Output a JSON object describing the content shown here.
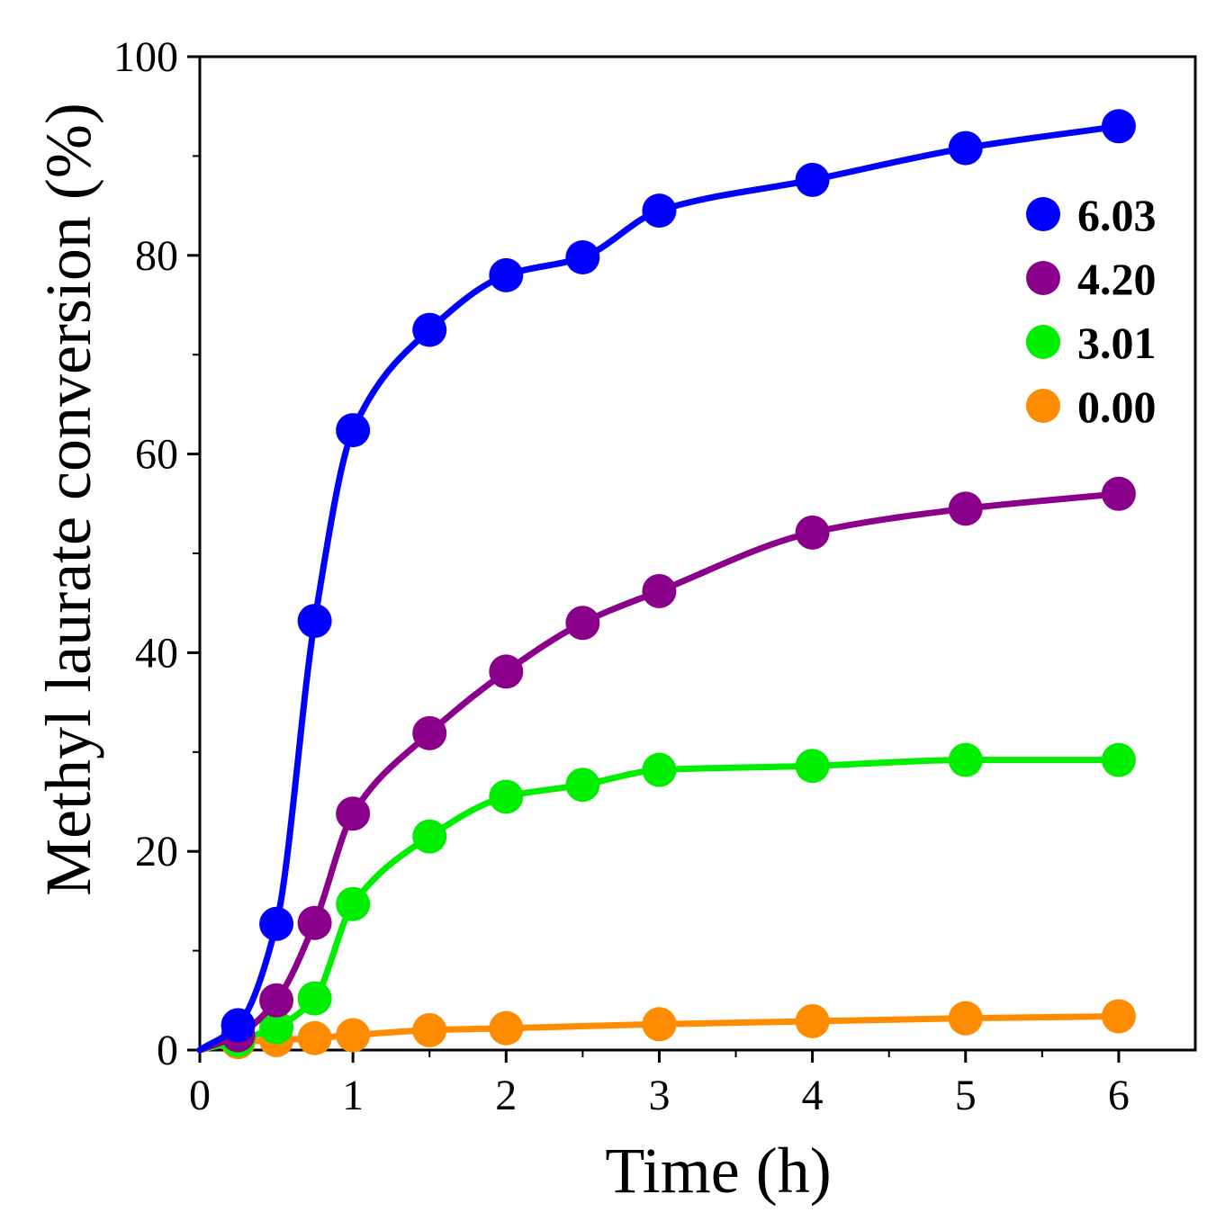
{
  "chart_data": {
    "type": "line",
    "title": "",
    "xlabel": "Time (h)",
    "ylabel": "Methyl laurate conversion (%)",
    "xlim": [
      0,
      6.5
    ],
    "ylim": [
      0,
      100
    ],
    "xticks": [
      0,
      1,
      2,
      3,
      4,
      5,
      6
    ],
    "xtick_labels": [
      "0",
      "1",
      "2",
      "3",
      "4",
      "5",
      "6"
    ],
    "yticks": [
      0,
      20,
      40,
      60,
      80,
      100
    ],
    "ytick_labels": [
      "0",
      "20",
      "40",
      "60",
      "80",
      "100"
    ],
    "grid": false,
    "legend_position": "top-right",
    "series": [
      {
        "name": "6.03",
        "color": "#0000ff",
        "x": [
          0.25,
          0.5,
          0.75,
          1,
          1.5,
          2,
          2.5,
          3,
          4,
          5,
          6
        ],
        "y": [
          2.5,
          12.7,
          43.2,
          62.4,
          72.5,
          78.0,
          79.8,
          84.5,
          87.6,
          90.8,
          93.0
        ]
      },
      {
        "name": "4.20",
        "color": "#8b008b",
        "x": [
          0.25,
          0.5,
          0.75,
          1,
          1.5,
          2,
          2.5,
          3,
          4,
          5,
          6
        ],
        "y": [
          1.5,
          5.0,
          12.8,
          23.8,
          31.9,
          38.1,
          43.0,
          46.2,
          52.1,
          54.5,
          56.0
        ]
      },
      {
        "name": "3.01",
        "color": "#00ee00",
        "x": [
          0.25,
          0.5,
          0.75,
          1,
          1.5,
          2,
          2.5,
          3,
          4,
          5,
          6
        ],
        "y": [
          1.0,
          2.3,
          5.2,
          14.7,
          21.5,
          25.5,
          26.7,
          28.2,
          28.6,
          29.2,
          29.2
        ]
      },
      {
        "name": "0.00",
        "color": "#ff8c00",
        "x": [
          0.25,
          0.5,
          0.75,
          1,
          1.5,
          2,
          3,
          4,
          5,
          6
        ],
        "y": [
          0.8,
          1.0,
          1.2,
          1.5,
          2.0,
          2.2,
          2.6,
          2.9,
          3.2,
          3.4
        ]
      }
    ]
  }
}
